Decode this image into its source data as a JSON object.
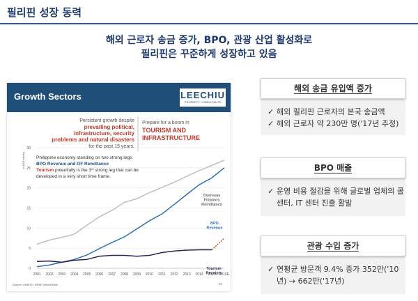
{
  "slide": {
    "title": "필리핀 성장 동력",
    "headline_line1": "해외 근로자 송금 증가, BPO, 관광 산업 활성화로",
    "headline_line2": "필리핀은 꾸준하게 성장하고 있음"
  },
  "chart_panel": {
    "header_title": "Growth Sectors",
    "brand_name": "LEECHIU",
    "brand_sub": "PROPERTY CONSULTANTS",
    "note1_line1": "Persistent growth despite",
    "note1_bold1": "prevailing political,",
    "note1_bold2": "infrastructure, security",
    "note1_bold3": "problems and natural disasters",
    "note1_line5": "for the past 15 years.",
    "note2_line1": "Prepare for a boom in",
    "note2_bold1": "TOURISM AND",
    "note2_bold2": "INFRASTRUCTURE",
    "note3_line1": "Philippine economy standing on two strong legs:",
    "note3_bold": "BPO Revenue and OF Remittance",
    "note3_tourism": "Tourism",
    "note3_rest": " potentially is the 3",
    "note3_sup": "rd",
    "note3_rest2": " strong leg that can be",
    "note3_line4": "developed in a very short time frame.",
    "source": "Source: UNWTO, BPAP, World Bank",
    "page_no": "60"
  },
  "chart_data": {
    "type": "line",
    "ylabel": "(in USD billions)",
    "ylim": [
      0,
      30
    ],
    "yticks": [
      0,
      5,
      10,
      15,
      20,
      25,
      30
    ],
    "x": [
      "2001",
      "2002",
      "2003",
      "2004",
      "2005",
      "2006",
      "2007",
      "2008",
      "2009",
      "2010",
      "2011",
      "2012",
      "2013",
      "2014",
      "2015",
      "2016E"
    ],
    "series": [
      {
        "name": "Overseas Filipinos Remittance",
        "label_lines": [
          "Overseas",
          "Filipinos",
          "Remittance"
        ],
        "color": "#bfbfbf",
        "values": [
          6.0,
          7.0,
          7.7,
          8.5,
          10.7,
          12.8,
          14.4,
          16.4,
          17.3,
          18.8,
          20.1,
          21.4,
          22.9,
          24.3,
          25.6,
          26.9
        ]
      },
      {
        "name": "BPO Revenue",
        "label_lines": [
          "BPO",
          "Revenue"
        ],
        "color": "#2e6fb3",
        "values": [
          0.4,
          0.8,
          1.5,
          2.2,
          3.3,
          4.9,
          6.4,
          7.8,
          9.8,
          11.8,
          13.5,
          15.9,
          18.4,
          20.8,
          22.5,
          25.0
        ]
      },
      {
        "name": "Tourism Receipts",
        "label_lines": [
          "Tourism",
          "Receipts"
        ],
        "color": "#2b1f4f",
        "values": [
          1.7,
          1.8,
          1.5,
          2.0,
          2.2,
          3.0,
          3.2,
          3.2,
          3.0,
          3.2,
          3.9,
          4.3,
          4.5,
          4.6,
          4.6,
          7.5
        ],
        "dashed_last": true
      }
    ]
  },
  "boxes": [
    {
      "title": "해외 송금 유입액 증가",
      "items": [
        "해외 필리핀 근로자의 본국 송금액",
        "해외 근로자 약 230만 명('17년 추정)"
      ]
    },
    {
      "title": "BPO 매출",
      "items": [
        "운영 비용 절감을 위해 글로벌 업체의 콜센터, IT 센터 진출 활발"
      ]
    },
    {
      "title": "관광 수입 증가",
      "items": [
        "연평균 방문객 9.4% 증가 352만('10년) → 662만('17년)"
      ]
    }
  ],
  "check_symbol": "✓",
  "colors": {
    "title": "#1f3a6b",
    "accent": "#2b5aa6",
    "red_note": "#c0392b",
    "header": "#1f4e79"
  }
}
